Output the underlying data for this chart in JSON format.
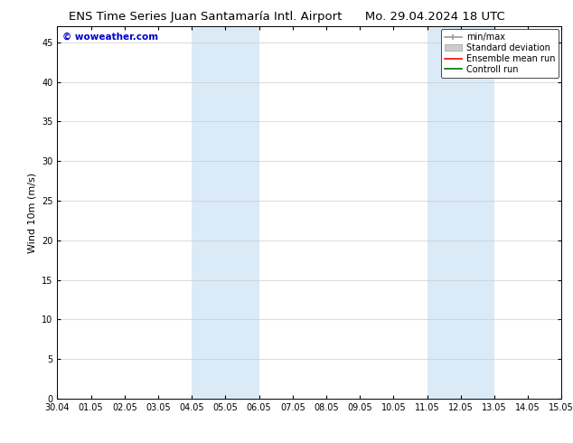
{
  "title_left": "ENS Time Series Juan Santamaría Intl. Airport",
  "title_right": "Mo. 29.04.2024 18 UTC",
  "ylabel": "Wind 10m (m/s)",
  "ylim": [
    0,
    47
  ],
  "yticks": [
    0,
    5,
    10,
    15,
    20,
    25,
    30,
    35,
    40,
    45
  ],
  "xtick_labels": [
    "30.04",
    "01.05",
    "02.05",
    "03.05",
    "04.05",
    "05.05",
    "06.05",
    "07.05",
    "08.05",
    "09.05",
    "10.05",
    "11.05",
    "12.05",
    "13.05",
    "14.05",
    "15.05"
  ],
  "shaded_bands": [
    {
      "xstart": 4,
      "xend": 6,
      "color": "#daeaf7"
    },
    {
      "xstart": 11,
      "xend": 13,
      "color": "#daeaf7"
    }
  ],
  "watermark_text": "© woweather.com",
  "watermark_color": "#0000cc",
  "background_color": "#ffffff",
  "plot_bg_color": "#ffffff",
  "legend_items": [
    {
      "label": "min/max",
      "color": "#aaaaaa",
      "style": "errorbar"
    },
    {
      "label": "Standard deviation",
      "color": "#cccccc",
      "style": "band"
    },
    {
      "label": "Ensemble mean run",
      "color": "#ff0000",
      "style": "line"
    },
    {
      "label": "Controll run",
      "color": "#007700",
      "style": "line"
    }
  ],
  "title_fontsize": 9.5,
  "tick_fontsize": 7,
  "ylabel_fontsize": 8,
  "legend_fontsize": 7,
  "watermark_fontsize": 7.5
}
